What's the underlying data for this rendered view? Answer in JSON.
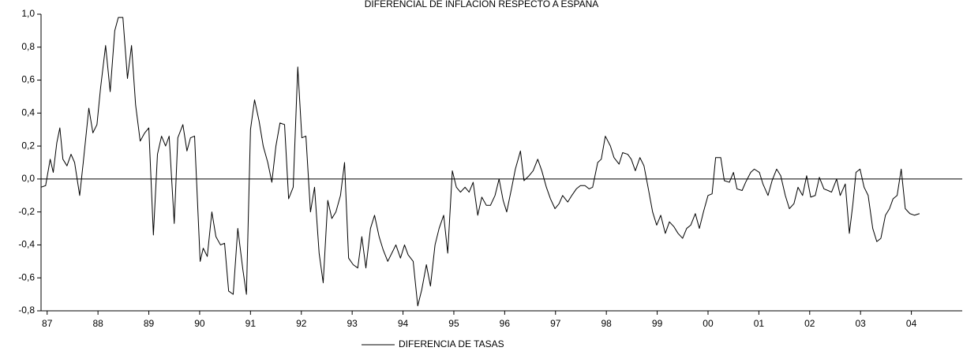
{
  "chart_data": {
    "type": "line",
    "title": "DIFERENCIAL DE INFLACION RESPECTO A ESPAÑA",
    "x": [
      1986.88,
      1986.97,
      1987.06,
      1987.12,
      1987.19,
      1987.25,
      1987.31,
      1987.39,
      1987.47,
      1987.54,
      1987.64,
      1987.71,
      1987.82,
      1987.9,
      1987.98,
      1988.05,
      1988.15,
      1988.24,
      1988.33,
      1988.4,
      1988.49,
      1988.58,
      1988.66,
      1988.74,
      1988.83,
      1988.92,
      1989.0,
      1989.09,
      1989.17,
      1989.25,
      1989.33,
      1989.4,
      1989.5,
      1989.57,
      1989.67,
      1989.75,
      1989.82,
      1989.9,
      1990.01,
      1990.07,
      1990.15,
      1990.24,
      1990.32,
      1990.41,
      1990.49,
      1990.57,
      1990.66,
      1990.75,
      1990.85,
      1990.92,
      1991.0,
      1991.08,
      1991.17,
      1991.25,
      1991.34,
      1991.42,
      1991.5,
      1991.58,
      1991.67,
      1991.75,
      1991.84,
      1991.93,
      1992.01,
      1992.09,
      1992.18,
      1992.26,
      1992.35,
      1992.43,
      1992.52,
      1992.6,
      1992.68,
      1992.77,
      1992.85,
      1992.93,
      1993.02,
      1993.11,
      1993.19,
      1993.27,
      1993.36,
      1993.44,
      1993.53,
      1993.61,
      1993.7,
      1993.78,
      1993.86,
      1993.95,
      1994.03,
      1994.1,
      1994.2,
      1994.29,
      1994.37,
      1994.46,
      1994.54,
      1994.63,
      1994.71,
      1994.8,
      1994.88,
      1994.97,
      1995.05,
      1995.13,
      1995.22,
      1995.3,
      1995.38,
      1995.47,
      1995.55,
      1995.64,
      1995.72,
      1995.81,
      1995.89,
      1995.97,
      1996.04,
      1996.14,
      1996.21,
      1996.31,
      1996.38,
      1996.48,
      1996.56,
      1996.65,
      1996.73,
      1996.82,
      1996.9,
      1996.99,
      1997.07,
      1997.14,
      1997.24,
      1997.32,
      1997.41,
      1997.49,
      1997.58,
      1997.66,
      1997.73,
      1997.83,
      1997.9,
      1997.98,
      1998.08,
      1998.15,
      1998.25,
      1998.32,
      1998.42,
      1998.49,
      1998.57,
      1998.66,
      1998.74,
      1998.82,
      1998.91,
      1998.99,
      1999.07,
      1999.16,
      1999.24,
      1999.33,
      1999.41,
      1999.5,
      1999.58,
      1999.66,
      1999.75,
      1999.83,
      1999.91,
      2000.0,
      2000.08,
      2000.15,
      2000.25,
      2000.32,
      2000.42,
      2000.5,
      2000.57,
      2000.67,
      2000.74,
      2000.84,
      2000.91,
      2001.01,
      2001.08,
      2001.18,
      2001.26,
      2001.35,
      2001.43,
      2001.52,
      2001.6,
      2001.69,
      2001.77,
      2001.86,
      2001.94,
      2002.02,
      2002.11,
      2002.19,
      2002.28,
      2002.36,
      2002.43,
      2002.53,
      2002.6,
      2002.7,
      2002.78,
      2002.85,
      2002.91,
      2002.99,
      2003.07,
      2003.15,
      2003.24,
      2003.32,
      2003.4,
      2003.49,
      2003.57,
      2003.64,
      2003.72,
      2003.8,
      2003.88,
      2003.97,
      2004.06,
      2004.16
    ],
    "series": [
      {
        "name": "DIFERENCIA DE TASAS",
        "color": "#000000",
        "values": [
          -0.05,
          -0.04,
          0.12,
          0.04,
          0.22,
          0.31,
          0.12,
          0.08,
          0.15,
          0.1,
          -0.1,
          0.1,
          0.43,
          0.28,
          0.33,
          0.55,
          0.81,
          0.53,
          0.9,
          0.98,
          0.98,
          0.61,
          0.81,
          0.45,
          0.23,
          0.28,
          0.31,
          -0.34,
          0.15,
          0.26,
          0.2,
          0.26,
          -0.27,
          0.25,
          0.33,
          0.17,
          0.25,
          0.26,
          -0.5,
          -0.42,
          -0.47,
          -0.2,
          -0.35,
          -0.4,
          -0.39,
          -0.68,
          -0.7,
          -0.3,
          -0.55,
          -0.7,
          0.3,
          0.48,
          0.35,
          0.2,
          0.1,
          -0.02,
          0.2,
          0.34,
          0.33,
          -0.12,
          -0.05,
          0.68,
          0.25,
          0.26,
          -0.2,
          -0.05,
          -0.45,
          -0.63,
          -0.13,
          -0.24,
          -0.2,
          -0.1,
          0.1,
          -0.48,
          -0.52,
          -0.54,
          -0.35,
          -0.54,
          -0.3,
          -0.22,
          -0.35,
          -0.43,
          -0.5,
          -0.45,
          -0.4,
          -0.48,
          -0.4,
          -0.46,
          -0.5,
          -0.77,
          -0.67,
          -0.52,
          -0.65,
          -0.4,
          -0.3,
          -0.22,
          -0.45,
          0.05,
          -0.05,
          -0.08,
          -0.05,
          -0.08,
          -0.02,
          -0.22,
          -0.11,
          -0.16,
          -0.16,
          -0.1,
          0.0,
          -0.13,
          -0.2,
          -0.05,
          0.06,
          0.17,
          -0.01,
          0.02,
          0.05,
          0.12,
          0.05,
          -0.05,
          -0.12,
          -0.18,
          -0.15,
          -0.1,
          -0.14,
          -0.1,
          -0.06,
          -0.04,
          -0.04,
          -0.06,
          -0.05,
          0.1,
          0.12,
          0.26,
          0.2,
          0.13,
          0.09,
          0.16,
          0.15,
          0.12,
          0.05,
          0.13,
          0.08,
          -0.05,
          -0.2,
          -0.28,
          -0.22,
          -0.33,
          -0.26,
          -0.29,
          -0.33,
          -0.36,
          -0.3,
          -0.28,
          -0.21,
          -0.3,
          -0.2,
          -0.1,
          -0.09,
          0.13,
          0.13,
          -0.01,
          -0.02,
          0.04,
          -0.06,
          -0.07,
          -0.02,
          0.04,
          0.06,
          0.04,
          -0.03,
          -0.1,
          -0.01,
          0.06,
          0.02,
          -0.1,
          -0.18,
          -0.15,
          -0.05,
          -0.1,
          0.02,
          -0.11,
          -0.1,
          0.01,
          -0.06,
          -0.07,
          -0.08,
          0.0,
          -0.1,
          -0.03,
          -0.33,
          -0.15,
          0.04,
          0.06,
          -0.05,
          -0.1,
          -0.3,
          -0.38,
          -0.36,
          -0.22,
          -0.18,
          -0.12,
          -0.1,
          0.06,
          -0.18,
          -0.21,
          -0.22,
          -0.21
        ]
      }
    ],
    "xlim": [
      1986.88,
      2005
    ],
    "xticks": [
      {
        "value": 1987,
        "label": "87"
      },
      {
        "value": 1988,
        "label": "88"
      },
      {
        "value": 1989,
        "label": "89"
      },
      {
        "value": 1990,
        "label": "90"
      },
      {
        "value": 1991,
        "label": "91"
      },
      {
        "value": 1992,
        "label": "92"
      },
      {
        "value": 1993,
        "label": "93"
      },
      {
        "value": 1994,
        "label": "94"
      },
      {
        "value": 1995,
        "label": "95"
      },
      {
        "value": 1996,
        "label": "96"
      },
      {
        "value": 1997,
        "label": "97"
      },
      {
        "value": 1998,
        "label": "98"
      },
      {
        "value": 1999,
        "label": "99"
      },
      {
        "value": 2000,
        "label": "00"
      },
      {
        "value": 2001,
        "label": "01"
      },
      {
        "value": 2002,
        "label": "02"
      },
      {
        "value": 2003,
        "label": "03"
      },
      {
        "value": 2004,
        "label": "04"
      }
    ],
    "ylim": [
      -0.8,
      1.0
    ],
    "yticks": [
      {
        "value": 1.0,
        "label": "1,0"
      },
      {
        "value": 0.8,
        "label": "0,8"
      },
      {
        "value": 0.6,
        "label": "0,6"
      },
      {
        "value": 0.4,
        "label": "0,4"
      },
      {
        "value": 0.2,
        "label": "0,2"
      },
      {
        "value": 0,
        "label": "0,0"
      },
      {
        "value": -0.2,
        "label": "-0,2"
      },
      {
        "value": -0.4,
        "label": "-0,4"
      },
      {
        "value": -0.6,
        "label": "-0,6"
      },
      {
        "value": -0.8,
        "label": "-0,8"
      }
    ],
    "grid": false,
    "legend": "bottom"
  }
}
